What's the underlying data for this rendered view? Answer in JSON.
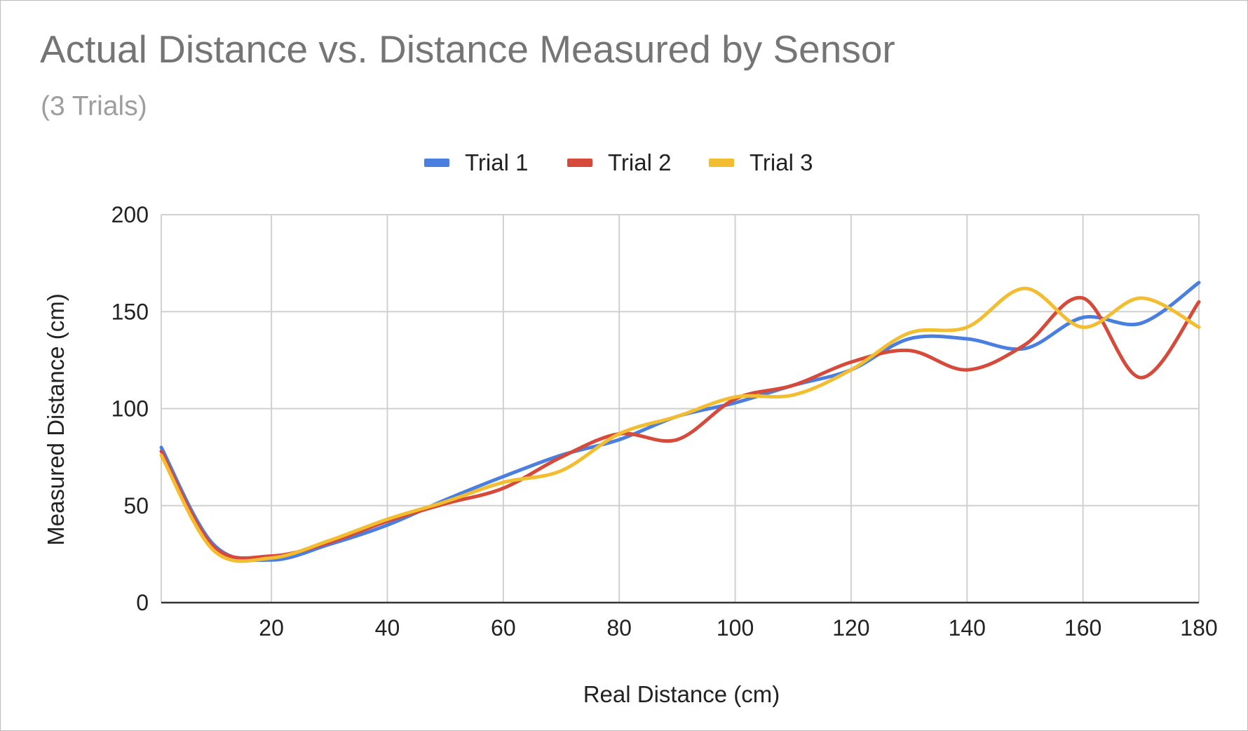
{
  "chart_data": {
    "type": "line",
    "title": "Actual Distance vs. Distance Measured by Sensor",
    "subtitle": "(3 Trials)",
    "xlabel": "Real Distance (cm)",
    "ylabel": "Measured Distance (cm)",
    "xlim": [
      1,
      180
    ],
    "ylim": [
      0,
      200
    ],
    "x_ticks": [
      20,
      40,
      60,
      80,
      100,
      120,
      140,
      160,
      180
    ],
    "y_ticks": [
      0,
      50,
      100,
      150,
      200
    ],
    "grid": true,
    "legend_position": "top-center",
    "x": [
      1,
      10,
      20,
      30,
      40,
      50,
      60,
      70,
      80,
      90,
      100,
      110,
      120,
      130,
      140,
      150,
      160,
      170,
      180
    ],
    "series": [
      {
        "name": "Trial 1",
        "color": "#4a7fe0",
        "values": [
          80,
          30,
          22,
          30,
          40,
          53,
          65,
          76,
          84,
          96,
          103,
          112,
          120,
          136,
          136,
          131,
          147,
          144,
          165
        ]
      },
      {
        "name": "Trial 2",
        "color": "#d64a3b",
        "values": [
          78,
          29,
          24,
          31,
          42,
          51,
          59,
          75,
          87,
          84,
          105,
          112,
          124,
          130,
          120,
          133,
          157,
          116,
          155
        ]
      },
      {
        "name": "Trial 3",
        "color": "#f2bd30",
        "values": [
          76,
          27,
          23,
          32,
          43,
          52,
          62,
          68,
          87,
          96,
          106,
          107,
          120,
          139,
          142,
          162,
          142,
          157,
          142
        ]
      }
    ]
  }
}
